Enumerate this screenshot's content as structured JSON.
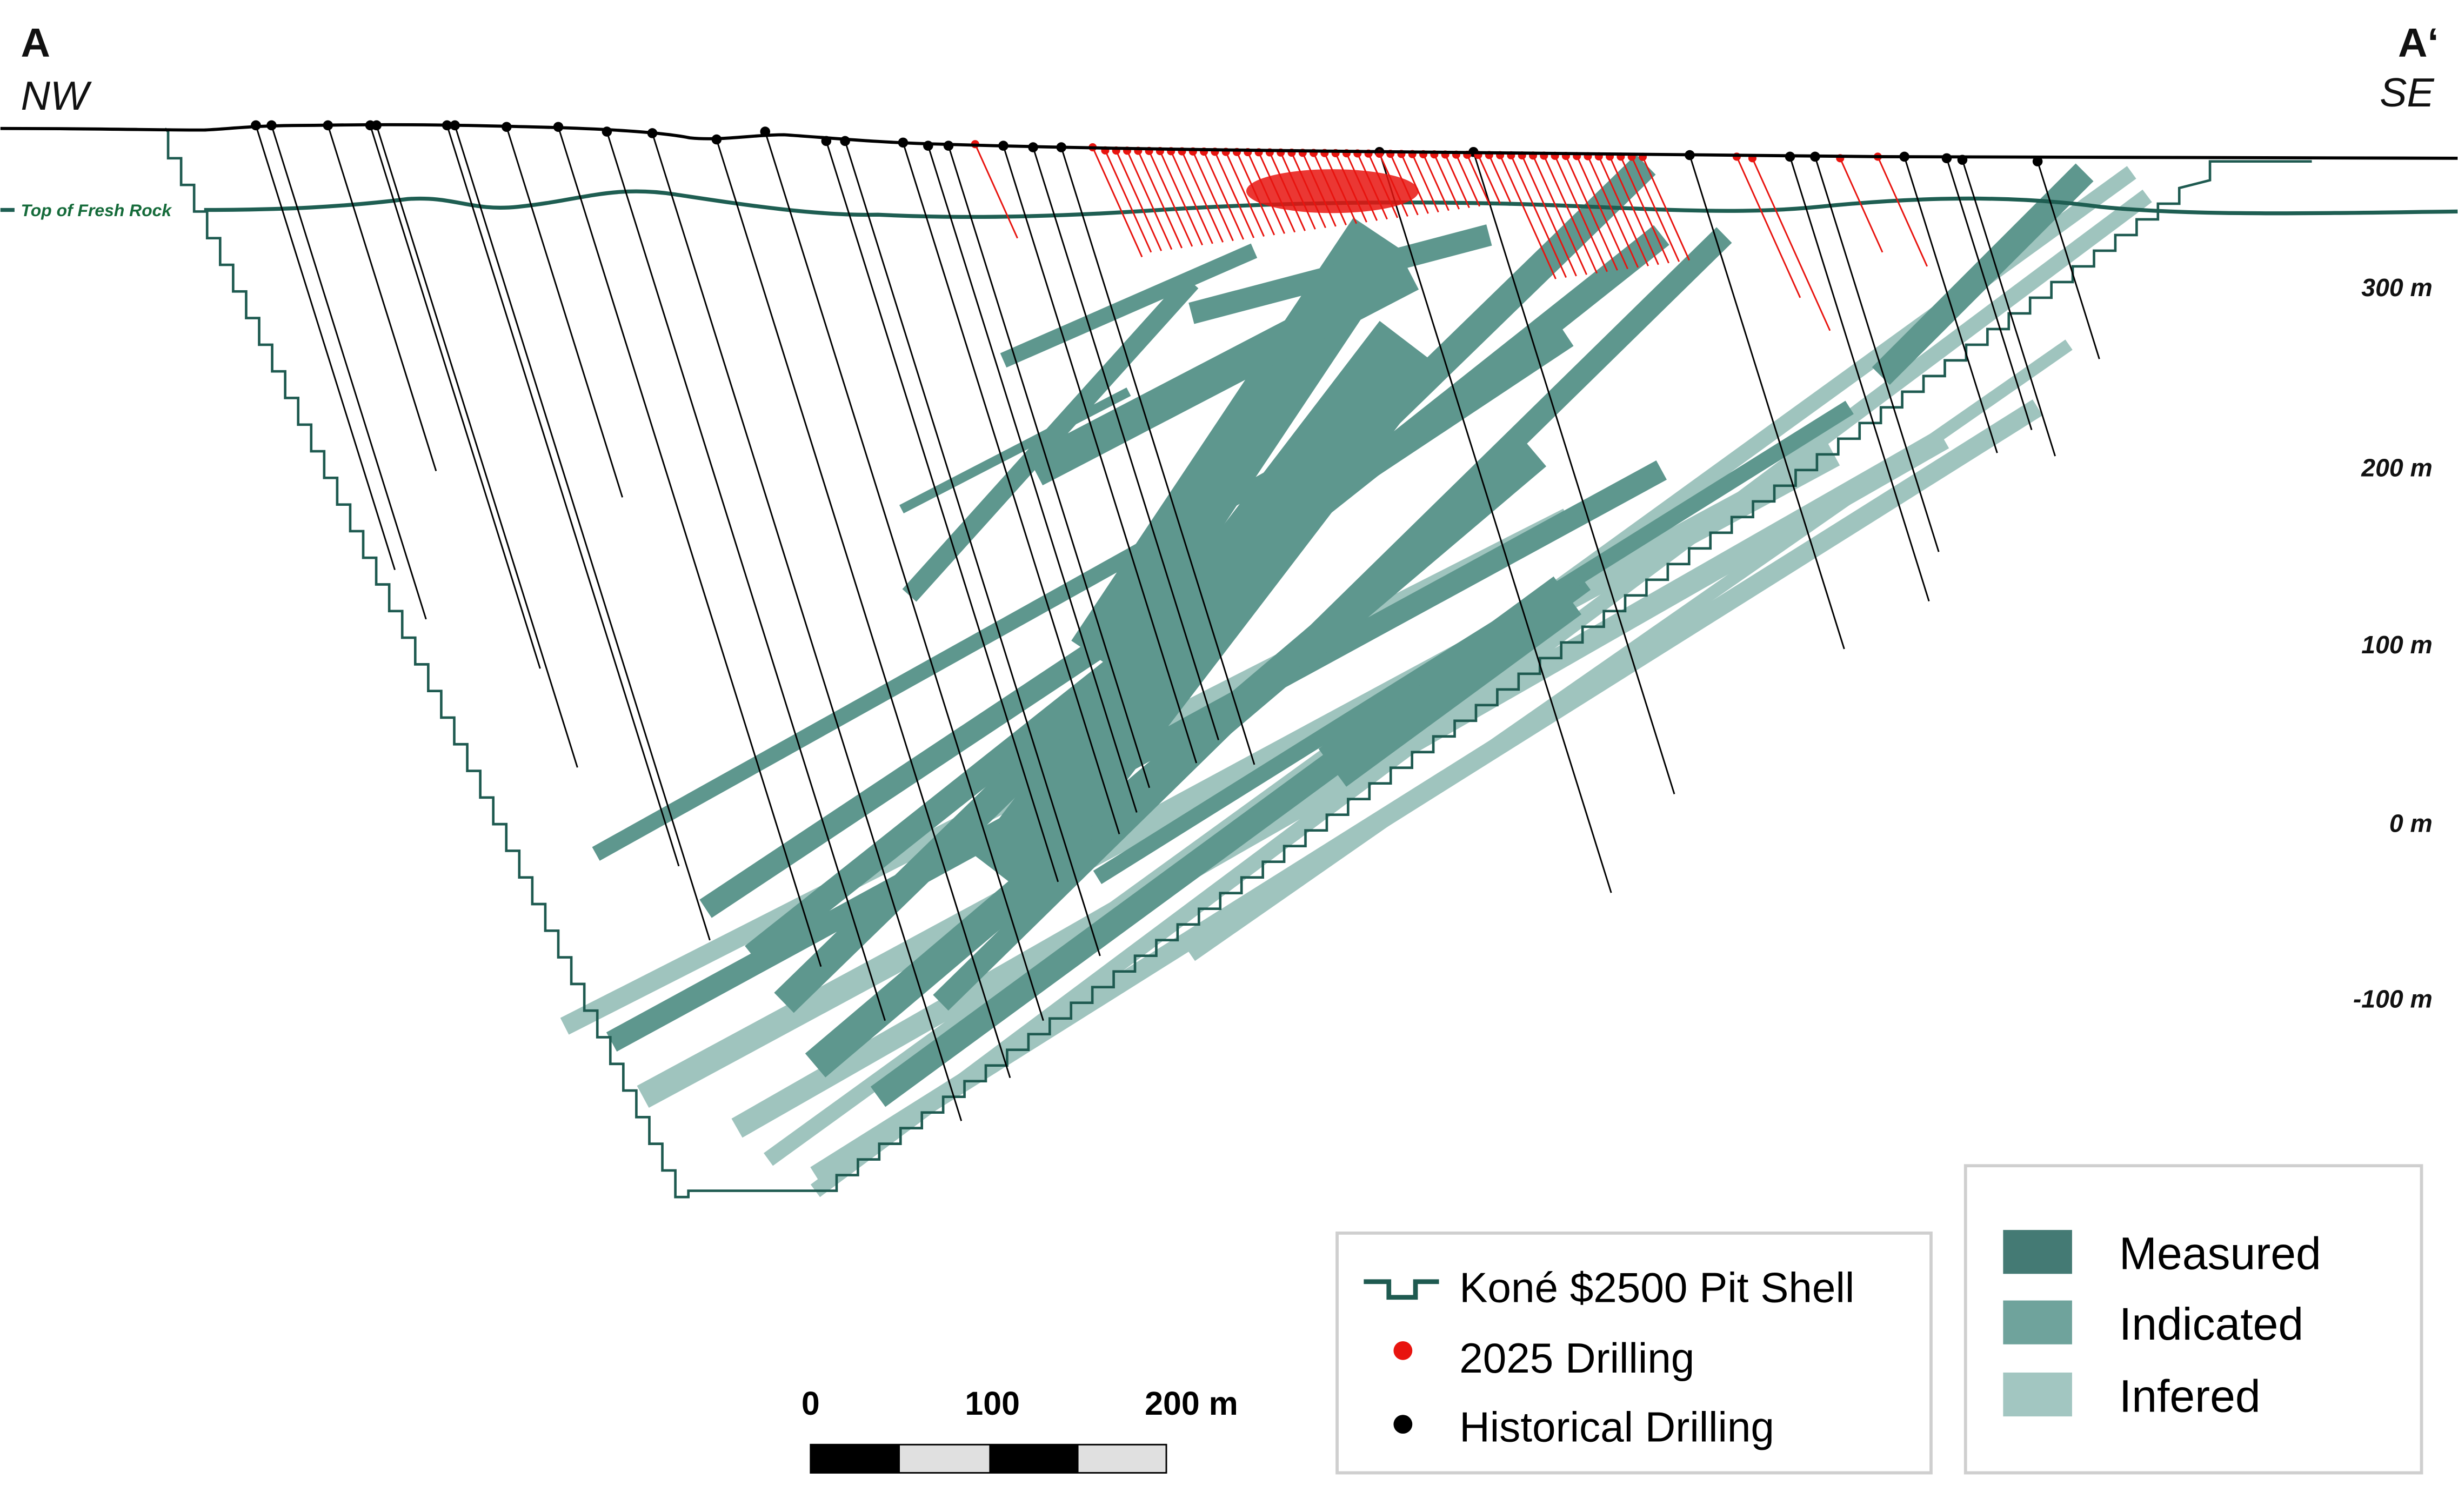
{
  "section": {
    "start_label": "A",
    "start_direction": "NW",
    "end_label": "A‘",
    "end_direction": "SE"
  },
  "annotations": {
    "fresh_rock": "Top of Fresh Rock"
  },
  "elevation_labels": [
    "300 m",
    "200 m",
    "100 m",
    "0 m",
    "-100 m"
  ],
  "scale_bar": {
    "ticks": [
      "0",
      "100",
      "200 m"
    ]
  },
  "legend_lines": {
    "items": [
      {
        "icon": "pit-shell-line-icon",
        "label": "Koné $2500 Pit Shell",
        "color": "#1e5a50"
      },
      {
        "icon": "red-dot-icon",
        "label": "2025 Drilling",
        "color": "#e8140f"
      },
      {
        "icon": "black-dot-icon",
        "label": "Historical Drilling",
        "color": "#000000"
      }
    ]
  },
  "legend_resources": {
    "items": [
      {
        "label": "Measured",
        "color": "#447a74"
      },
      {
        "label": "Indicated",
        "color": "#6fa39c"
      },
      {
        "label": "Infered",
        "color": "#a2c6c1"
      }
    ]
  },
  "colors": {
    "pit_shell": "#1e5a50",
    "fresh_rock": "#1e5e52",
    "band_main": "#5e978e",
    "band_inferred": "#9fc4be",
    "drill_2025": "#e8140f",
    "drill_hist": "#000000"
  }
}
